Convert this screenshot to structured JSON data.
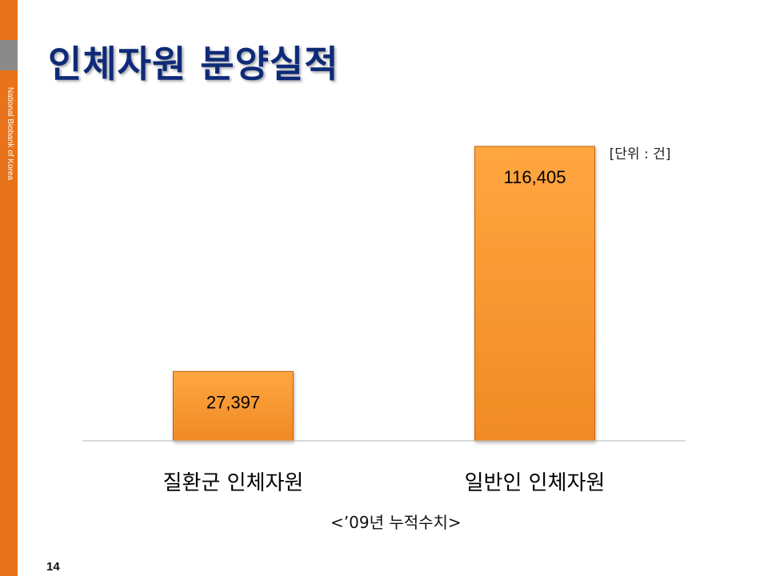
{
  "sidebar": {
    "text": "National Biobank of Korea",
    "color": "#e8731a"
  },
  "slide": {
    "title": "인체자원 분양실적",
    "unit_label": "[단위 : 건]",
    "note": "<’09년 누적수치>",
    "page_number": "14"
  },
  "chart_data": {
    "type": "bar",
    "title": "",
    "categories": [
      "질환군 인체자원",
      "일반인 인체자원"
    ],
    "values": [
      27397,
      116405
    ],
    "value_labels": [
      "27,397",
      "116,405"
    ],
    "xlabel": "",
    "ylabel": "",
    "ylim": [
      0,
      130000
    ],
    "grid": false,
    "legend": "none",
    "bar_color": "#f08a24",
    "bar_color_light": "#ffa640",
    "bar_edge_color": "#c55f10"
  }
}
